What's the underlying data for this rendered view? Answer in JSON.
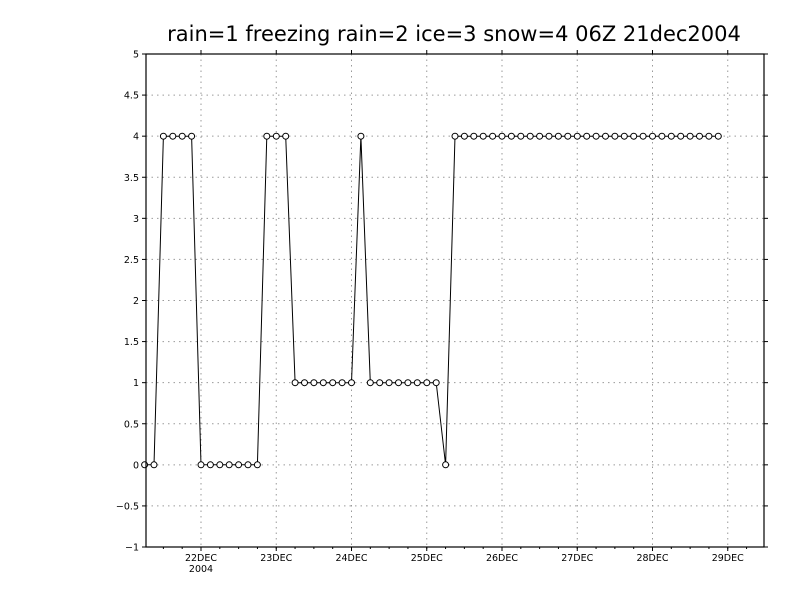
{
  "chart_data": {
    "type": "line",
    "title": "rain=1 freezing rain=2 ice=3 snow=4 06Z 21dec2004",
    "xlabel": "",
    "ylabel": "",
    "ylim": [
      -1,
      5
    ],
    "y_ticks": [
      "-1",
      "-0.5",
      "0",
      "0.5",
      "1",
      "1.5",
      "2",
      "2.5",
      "3",
      "3.5",
      "4",
      "4.5",
      "5"
    ],
    "x_ticks": [
      {
        "label": "22DEC",
        "sublabel": "2004"
      },
      {
        "label": "23DEC",
        "sublabel": ""
      },
      {
        "label": "24DEC",
        "sublabel": ""
      },
      {
        "label": "25DEC",
        "sublabel": ""
      },
      {
        "label": "26DEC",
        "sublabel": ""
      },
      {
        "label": "27DEC",
        "sublabel": ""
      },
      {
        "label": "28DEC",
        "sublabel": ""
      },
      {
        "label": "29DEC",
        "sublabel": ""
      }
    ],
    "x_start": "2004-12-21 06Z",
    "x_step_hours": 3,
    "grid": true,
    "marker": "open-circle",
    "series": [
      {
        "values": [
          0,
          0,
          4,
          4,
          4,
          4,
          0,
          0,
          0,
          0,
          0,
          0,
          0,
          4,
          4,
          4,
          1,
          1,
          1,
          1,
          1,
          1,
          1,
          4,
          1,
          1,
          1,
          1,
          1,
          1,
          1,
          1,
          0,
          4,
          4,
          4,
          4,
          4,
          4,
          4,
          4,
          4,
          4,
          4,
          4,
          4,
          4,
          4,
          4,
          4,
          4,
          4,
          4,
          4,
          4,
          4,
          4,
          4,
          4,
          4,
          4,
          4
        ]
      }
    ]
  },
  "colors": {
    "background": "#ffffff",
    "line": "#000000",
    "grid": "#9a9a9a"
  }
}
